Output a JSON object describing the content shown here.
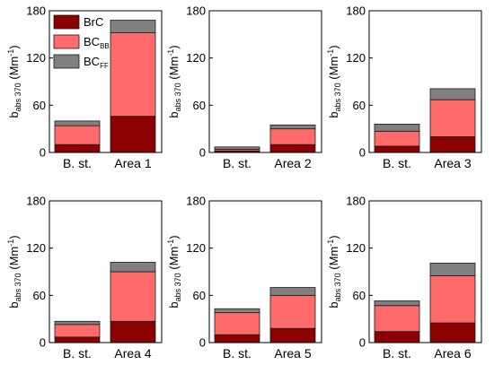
{
  "chart_data": {
    "type": "bar",
    "stacked": true,
    "ylabel": {
      "main": "b",
      "sub": "abs 370",
      "unit": "(Mm",
      "unit_sup": "-1",
      "unit_close": ")"
    },
    "ylim": [
      0,
      180
    ],
    "yticks": [
      0,
      60,
      120,
      180
    ],
    "legend": {
      "placement": "top-left",
      "panel": 0,
      "entries": [
        {
          "series": 0,
          "main": "BrC",
          "sub": ""
        },
        {
          "series": 1,
          "main": "BC",
          "sub": "BB"
        },
        {
          "series": 2,
          "main": "BC",
          "sub": "FF"
        }
      ]
    },
    "series": [
      {
        "name": "BrC",
        "color": "#8b0000"
      },
      {
        "name": "BC_BB",
        "color": "#ff6b6b"
      },
      {
        "name": "BC_FF",
        "color": "#808080"
      }
    ],
    "panels": [
      {
        "categories": [
          "B. st.",
          "Area 1"
        ],
        "values": [
          [
            10,
            24,
            6
          ],
          [
            46,
            106,
            16
          ]
        ]
      },
      {
        "categories": [
          "B. st.",
          "Area 2"
        ],
        "values": [
          [
            2,
            2,
            3
          ],
          [
            10,
            20,
            5
          ]
        ]
      },
      {
        "categories": [
          "B. st.",
          "Area 3"
        ],
        "values": [
          [
            8,
            19,
            9
          ],
          [
            20,
            47,
            14
          ]
        ]
      },
      {
        "categories": [
          "B. st.",
          "Area 4"
        ],
        "values": [
          [
            7,
            16,
            4
          ],
          [
            27,
            63,
            12
          ]
        ]
      },
      {
        "categories": [
          "B. st.",
          "Area 5"
        ],
        "values": [
          [
            10,
            28,
            5
          ],
          [
            18,
            42,
            10
          ]
        ]
      },
      {
        "categories": [
          "B. st.",
          "Area 6"
        ],
        "values": [
          [
            14,
            33,
            6
          ],
          [
            25,
            60,
            16
          ]
        ]
      }
    ]
  }
}
